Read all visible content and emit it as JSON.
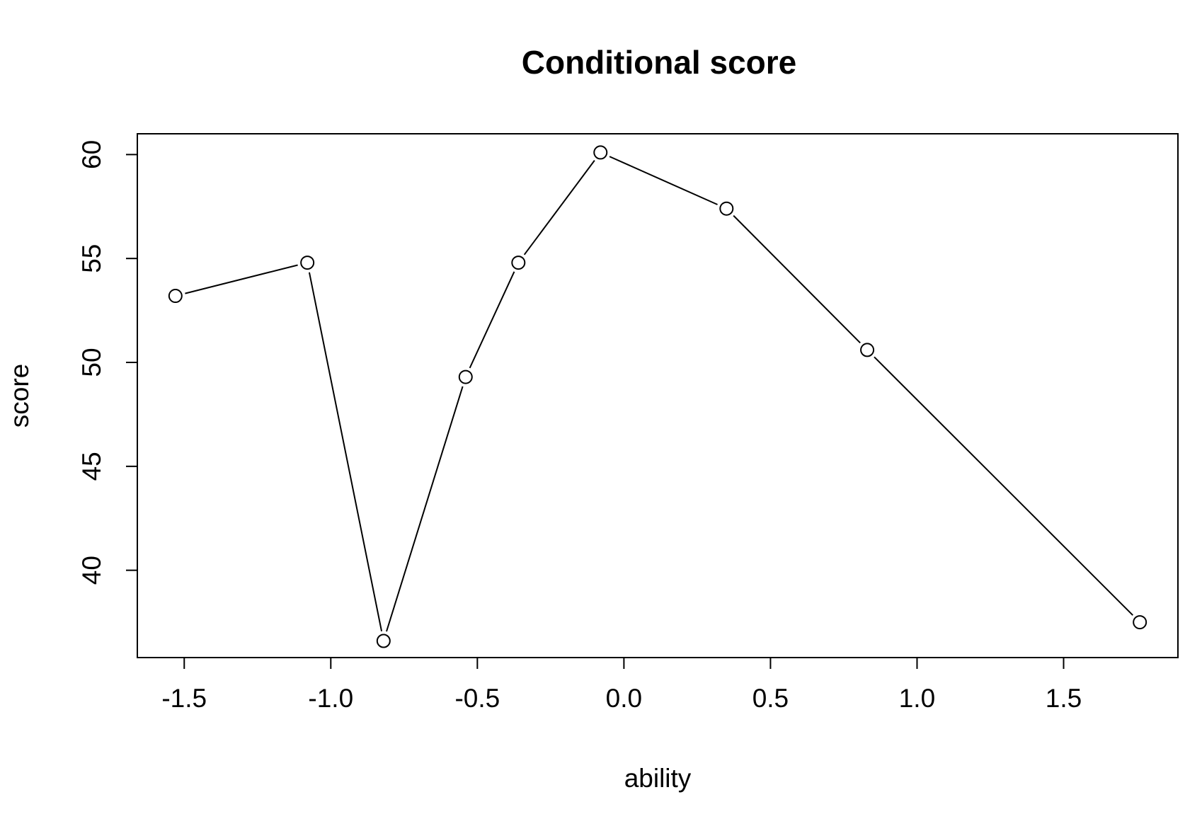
{
  "chart_data": {
    "type": "line",
    "title": "Conditional score",
    "xlabel": "ability",
    "ylabel": "score",
    "xlim": [
      -1.66,
      1.89
    ],
    "ylim": [
      35.8,
      61.0
    ],
    "x_ticks": [
      -1.5,
      -1.0,
      -0.5,
      0.0,
      0.5,
      1.0,
      1.5
    ],
    "x_tick_labels": [
      "-1.5",
      "-1.0",
      "-0.5",
      "0.0",
      "0.5",
      "1.0",
      "1.5"
    ],
    "y_ticks": [
      40,
      45,
      50,
      55,
      60
    ],
    "y_tick_labels": [
      "40",
      "45",
      "50",
      "55",
      "60"
    ],
    "grid": false,
    "markers": "open-circle",
    "series": [
      {
        "x": [
          -1.53,
          -1.08,
          -0.82,
          -0.54,
          -0.36,
          -0.08,
          0.35,
          0.83,
          1.76
        ],
        "y": [
          53.2,
          54.8,
          36.6,
          49.3,
          54.8,
          60.1,
          57.4,
          50.6,
          37.5
        ]
      }
    ]
  }
}
